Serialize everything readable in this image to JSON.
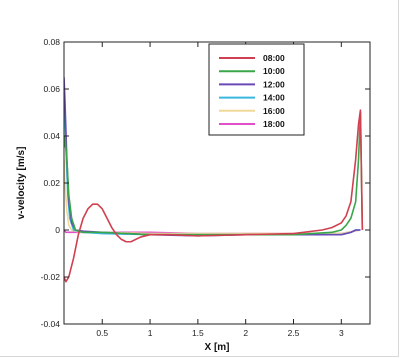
{
  "caption": "",
  "chart_data": {
    "type": "line",
    "xlabel": "X [m]",
    "ylabel": "v-velocity [m/s]",
    "xlim": [
      0.1,
      3.3
    ],
    "ylim": [
      -0.04,
      0.08
    ],
    "xticks": [
      0.5,
      1,
      1.5,
      2,
      2.5,
      3
    ],
    "xtick_labels": [
      "0.5",
      "1",
      "1.5",
      "2",
      "2.5",
      "3"
    ],
    "yticks": [
      -0.04,
      -0.02,
      0,
      0.02,
      0.04,
      0.06,
      0.08
    ],
    "ytick_labels": [
      "-0.04",
      "-0.02",
      "0",
      "0.02",
      "0.04",
      "0.06",
      "0.08"
    ],
    "grid": false,
    "legend": "top-right",
    "series": [
      {
        "name": "08:00",
        "color": "#d04050",
        "x": [
          0.1,
          0.12,
          0.15,
          0.2,
          0.25,
          0.3,
          0.35,
          0.4,
          0.45,
          0.5,
          0.55,
          0.6,
          0.65,
          0.7,
          0.75,
          0.8,
          0.9,
          1.0,
          1.2,
          1.5,
          2.0,
          2.5,
          2.8,
          2.9,
          3.0,
          3.05,
          3.1,
          3.15,
          3.18,
          3.2,
          3.22
        ],
        "y": [
          -0.02,
          -0.022,
          -0.02,
          -0.012,
          -0.002,
          0.005,
          0.009,
          0.011,
          0.011,
          0.009,
          0.005,
          0.001,
          -0.002,
          -0.004,
          -0.005,
          -0.005,
          -0.003,
          -0.002,
          -0.002,
          -0.0025,
          -0.002,
          -0.0015,
          0.0,
          0.001,
          0.003,
          0.006,
          0.012,
          0.03,
          0.045,
          0.051,
          0.0
        ]
      },
      {
        "name": "10:00",
        "color": "#3aa64a",
        "x": [
          0.1,
          0.11,
          0.13,
          0.15,
          0.18,
          0.22,
          0.3,
          0.5,
          1.0,
          1.5,
          2.0,
          2.5,
          2.9,
          3.0,
          3.05,
          3.1,
          3.15,
          3.18,
          3.2,
          3.22
        ],
        "y": [
          0.035,
          0.04,
          0.03,
          0.015,
          0.005,
          0.0,
          -0.001,
          -0.001,
          -0.002,
          -0.002,
          -0.002,
          -0.002,
          -0.001,
          0.0,
          0.002,
          0.005,
          0.012,
          0.03,
          0.05,
          0.0
        ]
      },
      {
        "name": "12:00",
        "color": "#6a4ab8",
        "x": [
          0.1,
          0.11,
          0.13,
          0.15,
          0.18,
          0.22,
          0.3,
          0.5,
          1.0,
          1.5,
          2.0,
          2.5,
          3.0,
          3.1,
          3.15,
          3.2
        ],
        "y": [
          0.065,
          0.055,
          0.03,
          0.012,
          0.003,
          0.0,
          -0.0005,
          -0.001,
          -0.002,
          -0.0025,
          -0.002,
          -0.002,
          -0.002,
          -0.001,
          0.0,
          0.0
        ]
      },
      {
        "name": "14:00",
        "color": "#38b8e0",
        "x": [
          0.1,
          0.11,
          0.12,
          0.14,
          0.16,
          0.2,
          0.25,
          0.3,
          0.5,
          1.0,
          1.5,
          2.0,
          2.5,
          3.0,
          3.1,
          3.15,
          3.2
        ],
        "y": [
          0.06,
          0.05,
          0.035,
          0.015,
          0.005,
          0.0,
          -0.0005,
          -0.001,
          -0.0015,
          -0.002,
          -0.002,
          -0.002,
          -0.002,
          -0.002,
          -0.001,
          0.0,
          0.0
        ]
      },
      {
        "name": "16:00",
        "color": "#f0d898",
        "x": [
          0.1,
          0.11,
          0.13,
          0.15,
          0.18,
          0.22,
          0.3,
          0.5,
          1.0,
          1.5,
          2.0,
          2.5,
          3.0,
          3.2
        ],
        "y": [
          0.03,
          0.02,
          0.008,
          0.002,
          0.0,
          -0.0005,
          -0.001,
          -0.001,
          -0.0015,
          -0.0015,
          -0.0015,
          -0.0015,
          -0.0015,
          0.0
        ]
      },
      {
        "name": "18:00",
        "color": "#e050c8",
        "x": [
          0.1,
          0.12,
          0.15,
          0.2,
          0.3,
          0.5,
          1.0,
          1.5,
          2.0,
          2.5,
          3.0,
          3.2
        ],
        "y": [
          0.0,
          -0.001,
          -0.001,
          -0.001,
          -0.001,
          -0.001,
          -0.001,
          -0.0015,
          -0.0015,
          -0.0015,
          -0.0015,
          0.0
        ]
      }
    ]
  }
}
